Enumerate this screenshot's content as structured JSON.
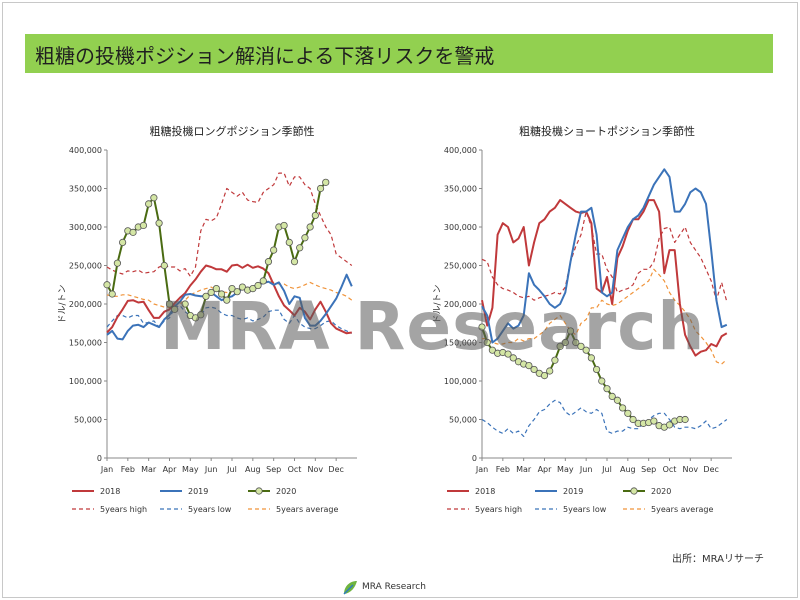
{
  "page": {
    "title": "粗糖の投機ポジション解消による下落リスクを警戒",
    "watermark": "MRA Research",
    "source": "出所：MRAリサーチ",
    "footer_logo_text": "MRA Research",
    "colors": {
      "banner": "#92d050",
      "s2018": "#c0393b",
      "s2019": "#3b73b9",
      "s2020_line": "#4a6b12",
      "s2020_marker": "#d4e6a5",
      "high": "#c0393b",
      "low": "#3b73b9",
      "avg": "#f0943b",
      "extra": "#7d4f7e"
    }
  },
  "chart_data": [
    {
      "type": "line",
      "title": "粗糖投機ロングポジション季節性",
      "ylabel": "ドル/トン",
      "ylim": [
        0,
        400000
      ],
      "yticks": [
        "0",
        "50,000",
        "100,000",
        "150,000",
        "200,000",
        "250,000",
        "300,000",
        "350,000",
        "400,000"
      ],
      "months": [
        "Jan",
        "Feb",
        "Mar",
        "Apr",
        "May",
        "Jun",
        "Jul",
        "Aug",
        "Sep",
        "Oct",
        "Nov",
        "Dec"
      ],
      "x": [
        0,
        0.25,
        0.5,
        0.75,
        1,
        1.25,
        1.5,
        1.75,
        2,
        2.25,
        2.5,
        2.75,
        3,
        3.25,
        3.5,
        3.75,
        4,
        4.25,
        4.5,
        4.75,
        5,
        5.25,
        5.5,
        5.75,
        6,
        6.25,
        6.5,
        6.75,
        7,
        7.25,
        7.5,
        7.75,
        8,
        8.25,
        8.5,
        8.75,
        9,
        9.25,
        9.5,
        9.75,
        10,
        10.25,
        10.5,
        10.75,
        11,
        11.25,
        11.5,
        11.75
      ],
      "series": [
        {
          "name": "2018",
          "key": "s2018",
          "dash": false,
          "values": [
            163000,
            170000,
            183000,
            193000,
            204000,
            205000,
            202000,
            203000,
            192000,
            182000,
            182000,
            190000,
            193000,
            201000,
            208000,
            214000,
            224000,
            232000,
            242000,
            250000,
            248000,
            245000,
            245000,
            242000,
            250000,
            251000,
            247000,
            251000,
            247000,
            249000,
            246000,
            240000,
            225000,
            210000,
            198000,
            192000,
            185000,
            195000,
            190000,
            180000,
            193000,
            203000,
            190000,
            175000,
            168000,
            165000,
            162000,
            163000
          ]
        },
        {
          "name": "2019",
          "key": "s2019",
          "dash": false,
          "values": [
            160000,
            165000,
            155000,
            154000,
            165000,
            172000,
            173000,
            170000,
            176000,
            173000,
            170000,
            180000,
            186000,
            197000,
            203000,
            212000,
            213000,
            211000,
            210000,
            210000,
            215000,
            210000,
            205000,
            208000,
            210000,
            215000,
            220000,
            218000,
            222000,
            225000,
            227000,
            229000,
            225000,
            228000,
            217000,
            200000,
            210000,
            208000,
            182000,
            172000,
            172000,
            178000,
            187000,
            197000,
            207000,
            222000,
            238000,
            223000
          ]
        },
        {
          "name": "2020",
          "key": "s2020",
          "dash": false,
          "marker": true,
          "values": [
            225000,
            213000,
            253000,
            280000,
            295000,
            293000,
            300000,
            302000,
            330000,
            338000,
            305000,
            250000,
            200000,
            193000,
            null,
            200000,
            185000,
            182000,
            186000,
            210000,
            215000,
            220000,
            213000,
            205000,
            220000,
            216000,
            222000,
            218000,
            220000,
            224000,
            230000,
            255000,
            270000,
            300000,
            302000,
            280000,
            255000,
            273000,
            286000,
            300000,
            315000,
            350000,
            358000,
            null,
            null,
            null,
            null,
            null
          ]
        },
        {
          "name": "5years high",
          "key": "high",
          "dash": true,
          "values": [
            248000,
            244000,
            241000,
            239000,
            243000,
            242000,
            244000,
            240000,
            241000,
            242000,
            248000,
            250000,
            248000,
            248000,
            243000,
            246000,
            236000,
            248000,
            295000,
            310000,
            308000,
            312000,
            330000,
            350000,
            345000,
            340000,
            345000,
            335000,
            333000,
            332000,
            345000,
            350000,
            355000,
            370000,
            370000,
            353000,
            365000,
            365000,
            355000,
            350000,
            330000,
            315000,
            300000,
            290000,
            265000,
            260000,
            255000,
            250000
          ]
        },
        {
          "name": "5years low",
          "key": "low",
          "dash": true,
          "values": [
            170000,
            178000,
            185000,
            185000,
            182000,
            185000,
            185000,
            175000,
            176000,
            178000,
            170000,
            178000,
            182000,
            195000,
            198000,
            190000,
            185000,
            180000,
            185000,
            195000,
            196000,
            194000,
            188000,
            185000,
            185000,
            182000,
            180000,
            182000,
            178000,
            180000,
            183000,
            190000,
            192000,
            192000,
            180000,
            175000,
            185000,
            175000,
            170000,
            168000,
            168000,
            172000,
            177000,
            178000,
            172000,
            168000,
            165000,
            162000
          ]
        },
        {
          "name": "5years average",
          "key": "avg",
          "dash": true,
          "values": [
            212000,
            210000,
            210000,
            212000,
            212000,
            210000,
            208000,
            206000,
            205000,
            200000,
            198000,
            196000,
            195000,
            197000,
            200000,
            205000,
            212000,
            215000,
            218000,
            220000,
            222000,
            218000,
            216000,
            215000,
            216000,
            218000,
            220000,
            222000,
            222000,
            225000,
            227000,
            230000,
            228000,
            226000,
            226000,
            222000,
            220000,
            222000,
            225000,
            228000,
            225000,
            222000,
            220000,
            218000,
            215000,
            213000,
            210000,
            205000
          ]
        }
      ],
      "legend": [
        "2018",
        "2019",
        "2020",
        "5years high",
        "5years low",
        "5years average"
      ]
    },
    {
      "type": "line",
      "title": "粗糖投機ショートポジション季節性",
      "ylabel": "ドル/トン",
      "ylim": [
        0,
        400000
      ],
      "yticks": [
        "0",
        "50,000",
        "100,000",
        "150,000",
        "200,000",
        "250,000",
        "300,000",
        "350,000",
        "400,000"
      ],
      "months": [
        "Jan",
        "Feb",
        "Mar",
        "Apr",
        "May",
        "Jun",
        "Jul",
        "Aug",
        "Sep",
        "Oct",
        "Nov",
        "Dec"
      ],
      "x": [
        0,
        0.25,
        0.5,
        0.75,
        1,
        1.25,
        1.5,
        1.75,
        2,
        2.25,
        2.5,
        2.75,
        3,
        3.25,
        3.5,
        3.75,
        4,
        4.25,
        4.5,
        4.75,
        5,
        5.25,
        5.5,
        5.75,
        6,
        6.25,
        6.5,
        6.75,
        7,
        7.25,
        7.5,
        7.75,
        8,
        8.25,
        8.5,
        8.75,
        9,
        9.25,
        9.5,
        9.75,
        10,
        10.25,
        10.5,
        10.75,
        11,
        11.25,
        11.5,
        11.75
      ],
      "series": [
        {
          "name": "2018",
          "key": "s2018",
          "dash": false,
          "values": [
            205000,
            172000,
            195000,
            290000,
            305000,
            300000,
            280000,
            285000,
            300000,
            250000,
            280000,
            305000,
            310000,
            320000,
            325000,
            335000,
            330000,
            325000,
            320000,
            318000,
            320000,
            305000,
            220000,
            215000,
            235000,
            200000,
            260000,
            275000,
            295000,
            310000,
            310000,
            320000,
            335000,
            335000,
            320000,
            240000,
            270000,
            270000,
            200000,
            160000,
            145000,
            133000,
            138000,
            140000,
            148000,
            145000,
            158000,
            162000
          ]
        },
        {
          "name": "2019",
          "key": "s2019",
          "dash": false,
          "values": [
            197000,
            185000,
            150000,
            155000,
            165000,
            175000,
            168000,
            172000,
            185000,
            240000,
            225000,
            218000,
            210000,
            200000,
            195000,
            200000,
            215000,
            255000,
            290000,
            320000,
            320000,
            325000,
            290000,
            215000,
            210000,
            215000,
            270000,
            285000,
            300000,
            310000,
            315000,
            325000,
            340000,
            355000,
            365000,
            375000,
            365000,
            320000,
            320000,
            330000,
            345000,
            350000,
            345000,
            330000,
            270000,
            205000,
            170000,
            173000
          ]
        },
        {
          "name": "2020",
          "key": "s2020",
          "dash": false,
          "marker": true,
          "values": [
            170000,
            150000,
            140000,
            136000,
            137000,
            135000,
            130000,
            125000,
            122000,
            120000,
            115000,
            110000,
            107000,
            113000,
            127000,
            145000,
            150000,
            165000,
            150000,
            145000,
            140000,
            130000,
            115000,
            100000,
            90000,
            80000,
            75000,
            65000,
            58000,
            50000,
            45000,
            45000,
            46000,
            48000,
            42000,
            40000,
            43000,
            48000,
            50000,
            50000,
            null,
            null,
            null,
            null,
            null,
            null,
            null,
            null
          ]
        },
        {
          "name": "5years high",
          "key": "high",
          "dash": true,
          "values": [
            258000,
            255000,
            235000,
            225000,
            220000,
            218000,
            215000,
            210000,
            208000,
            210000,
            205000,
            208000,
            210000,
            212000,
            215000,
            213000,
            222000,
            255000,
            275000,
            290000,
            320000,
            300000,
            265000,
            265000,
            245000,
            235000,
            215000,
            218000,
            220000,
            225000,
            240000,
            245000,
            245000,
            255000,
            285000,
            298000,
            300000,
            280000,
            290000,
            300000,
            280000,
            270000,
            260000,
            245000,
            230000,
            205000,
            228000,
            203000
          ]
        },
        {
          "name": "5years low",
          "key": "low",
          "dash": true,
          "values": [
            50000,
            46000,
            40000,
            35000,
            32000,
            38000,
            32000,
            35000,
            28000,
            42000,
            50000,
            60000,
            63000,
            70000,
            75000,
            72000,
            60000,
            55000,
            60000,
            65000,
            60000,
            58000,
            63000,
            58000,
            35000,
            32000,
            35000,
            35000,
            40000,
            38000,
            38000,
            45000,
            50000,
            55000,
            58000,
            58000,
            50000,
            40000,
            38000,
            40000,
            40000,
            38000,
            42000,
            48000,
            38000,
            40000,
            45000,
            50000
          ]
        },
        {
          "name": "5years average",
          "key": "avg",
          "dash": true,
          "values": [
            155000,
            155000,
            150000,
            148000,
            148000,
            150000,
            150000,
            155000,
            152000,
            155000,
            155000,
            160000,
            165000,
            175000,
            180000,
            185000,
            175000,
            165000,
            160000,
            175000,
            180000,
            195000,
            195000,
            205000,
            200000,
            198000,
            200000,
            205000,
            210000,
            215000,
            220000,
            225000,
            230000,
            245000,
            238000,
            230000,
            215000,
            205000,
            198000,
            190000,
            180000,
            165000,
            158000,
            150000,
            140000,
            125000,
            122000,
            128000
          ]
        }
      ],
      "legend": [
        "2018",
        "2019",
        "2020",
        "5years high",
        "5years low",
        "5years average"
      ]
    }
  ]
}
